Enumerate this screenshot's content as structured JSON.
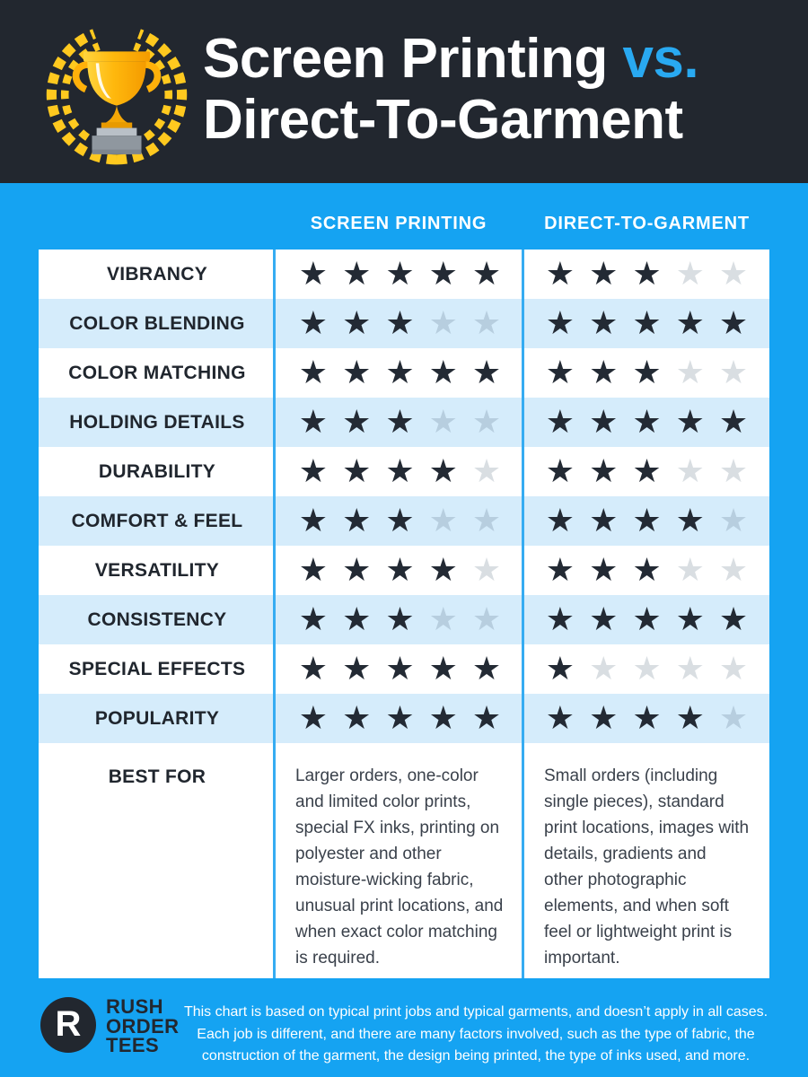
{
  "header": {
    "title_main": "Screen Printing ",
    "title_vs": "vs.",
    "title_line2": "Direct-To-Garment",
    "trophy_icon": "trophy-laurel-icon"
  },
  "columns": {
    "screen_printing": "SCREEN PRINTING",
    "dtg": "DIRECT-TO-GARMENT"
  },
  "table": {
    "max_stars": 5,
    "rows": [
      {
        "label": "VIBRANCY",
        "sp": 5,
        "dtg": 3
      },
      {
        "label": "COLOR BLENDING",
        "sp": 3,
        "dtg": 5
      },
      {
        "label": "COLOR MATCHING",
        "sp": 5,
        "dtg": 3
      },
      {
        "label": "HOLDING DETAILS",
        "sp": 3,
        "dtg": 5
      },
      {
        "label": "DURABILITY",
        "sp": 4,
        "dtg": 3
      },
      {
        "label": "COMFORT & FEEL",
        "sp": 3,
        "dtg": 4
      },
      {
        "label": "VERSATILITY",
        "sp": 4,
        "dtg": 3
      },
      {
        "label": "CONSISTENCY",
        "sp": 3,
        "dtg": 5
      },
      {
        "label": "SPECIAL EFFECTS",
        "sp": 5,
        "dtg": 1
      },
      {
        "label": "POPULARITY",
        "sp": 5,
        "dtg": 4
      }
    ],
    "best_for": {
      "label": "BEST FOR",
      "screen_printing": "Larger orders, one-color and limited color prints, special FX inks, printing on polyester and other moisture-wicking fabric, unusual print locations, and when exact color matching is required.",
      "dtg": "Small orders (including single pieces), standard print locations, images with details, gradients and other photographic elements, and when soft feel or lightweight print is important."
    }
  },
  "footer": {
    "logo_letter": "R",
    "logo_line1": "RUSH",
    "logo_line2": "ORDER",
    "logo_line3": "TEES",
    "disclaimer": "This chart is based on typical print jobs and typical garments, and doesn’t apply in all cases. Each job is different, and there are many factors involved, such as the type of fabric, the construction of the garment, the design being printed, the type of inks used, and more."
  },
  "colors": {
    "background_blue": "#15A3F2",
    "header_dark": "#22272F",
    "accent_blue": "#29A9F1",
    "row_light_blue": "#D5ECFB",
    "star_filled": "#232A34",
    "star_empty_on_white": "#D9DEE2",
    "star_empty_on_blue": "#B7CEDF",
    "column_separator": "#36ACF2",
    "laurel_gold": "#FFC91F"
  },
  "chart_data": {
    "type": "table",
    "title": "Screen Printing vs. Direct-To-Garment",
    "categories": [
      "Vibrancy",
      "Color Blending",
      "Color Matching",
      "Holding Details",
      "Durability",
      "Comfort & Feel",
      "Versatility",
      "Consistency",
      "Special Effects",
      "Popularity"
    ],
    "series": [
      {
        "name": "Screen Printing",
        "values": [
          5,
          3,
          5,
          3,
          4,
          3,
          4,
          3,
          5,
          5
        ]
      },
      {
        "name": "Direct-To-Garment",
        "values": [
          3,
          5,
          3,
          5,
          3,
          4,
          3,
          5,
          1,
          4
        ]
      }
    ],
    "scale": {
      "min": 0,
      "max": 5,
      "unit": "stars"
    },
    "legend_position": "column headers",
    "notes": "Star ratings; Best For row holds descriptive text per method"
  }
}
